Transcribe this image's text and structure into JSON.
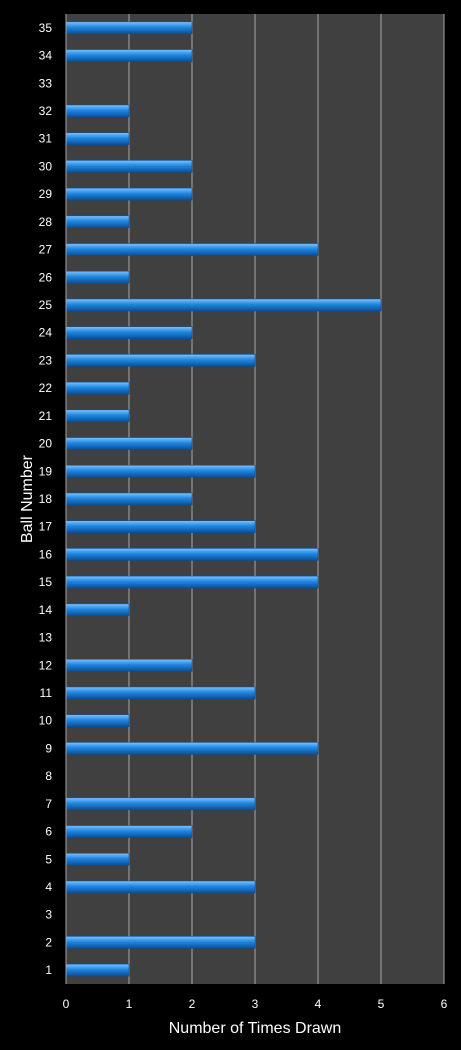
{
  "chart_data": {
    "type": "bar",
    "orientation": "horizontal",
    "categories": [
      "1",
      "2",
      "3",
      "4",
      "5",
      "6",
      "7",
      "8",
      "9",
      "10",
      "11",
      "12",
      "13",
      "14",
      "15",
      "16",
      "17",
      "18",
      "19",
      "20",
      "21",
      "22",
      "23",
      "24",
      "25",
      "26",
      "27",
      "28",
      "29",
      "30",
      "31",
      "32",
      "33",
      "34",
      "35"
    ],
    "values": [
      1,
      3,
      0,
      3,
      1,
      2,
      3,
      0,
      4,
      1,
      3,
      2,
      0,
      1,
      4,
      4,
      3,
      2,
      3,
      2,
      1,
      1,
      3,
      2,
      5,
      1,
      4,
      1,
      2,
      2,
      1,
      1,
      0,
      2,
      2
    ],
    "xlabel": "Number of Times Drawn",
    "ylabel": "Ball Number",
    "xlim": [
      0,
      6
    ],
    "xticks": [
      "0",
      "1",
      "2",
      "3",
      "4",
      "5",
      "6"
    ],
    "grid": "vertical",
    "colors": {
      "page_background": "#000000",
      "plot_background": "#404040",
      "bar": "#1f86e0",
      "bar_highlight": "#7cc3ff",
      "bar_shadow": "#0b4f96",
      "gridline": "#a6a6a6",
      "text": "#ffffff"
    }
  }
}
